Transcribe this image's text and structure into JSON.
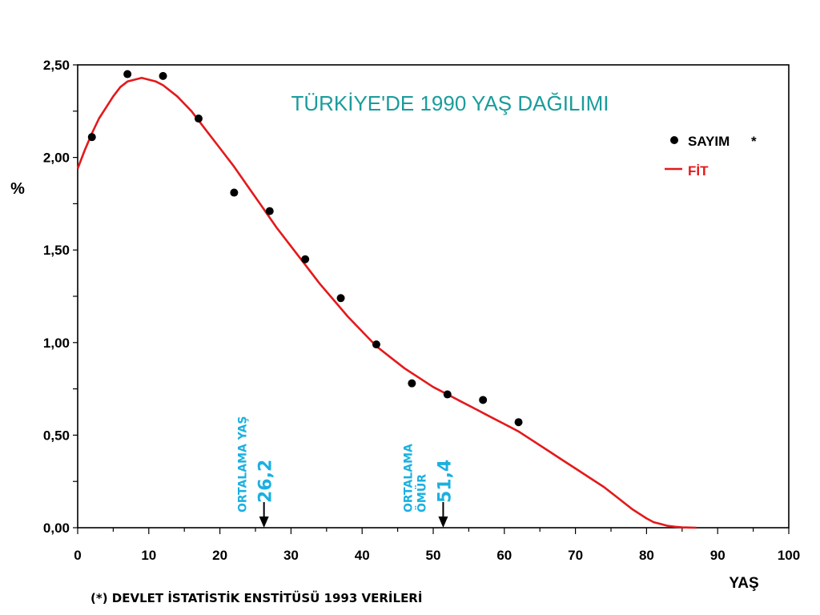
{
  "chart_data": {
    "type": "scatter",
    "title": "TÜRKİYE'DE 1990 YAŞ DAĞILIMI",
    "xlabel": "YAŞ",
    "ylabel": "%",
    "xlim": [
      0,
      100
    ],
    "ylim": [
      0,
      2.5
    ],
    "x_ticks": [
      0,
      10,
      20,
      30,
      40,
      50,
      60,
      70,
      80,
      90,
      100
    ],
    "x_tick_labels": [
      "0",
      "10",
      "20",
      "30",
      "40",
      "50",
      "60",
      "70",
      "80",
      "90",
      "100"
    ],
    "y_ticks": [
      0,
      0.5,
      1.0,
      1.5,
      2.0,
      2.5
    ],
    "y_tick_labels": [
      "0,00",
      "0,50",
      "1,00",
      "1,50",
      "2,00",
      "2,50"
    ],
    "grid": false,
    "legend_position": "top-right",
    "series": [
      {
        "name": "SAYIM",
        "legend_suffix": "*",
        "kind": "points",
        "color": "#000000",
        "x": [
          2,
          7,
          12,
          17,
          22,
          27,
          32,
          37,
          42,
          47,
          52,
          57,
          62
        ],
        "y": [
          2.11,
          2.45,
          2.44,
          2.21,
          1.81,
          1.71,
          1.45,
          1.24,
          0.99,
          0.78,
          0.72,
          0.69,
          0.57
        ]
      },
      {
        "name": "FİT",
        "kind": "line",
        "color": "#e3191b",
        "x": [
          0,
          1,
          2,
          3,
          4,
          5,
          6,
          7,
          8,
          9,
          10,
          11,
          12,
          14,
          16,
          18,
          20,
          22,
          24,
          26,
          28,
          30,
          32,
          34,
          36,
          38,
          40,
          42,
          44,
          46,
          48,
          50,
          52,
          54,
          56,
          58,
          60,
          62,
          64,
          66,
          68,
          70,
          72,
          74,
          76,
          78,
          80,
          81,
          82,
          83,
          84,
          85,
          86,
          87
        ],
        "y": [
          1.94,
          2.04,
          2.13,
          2.21,
          2.27,
          2.33,
          2.38,
          2.41,
          2.42,
          2.43,
          2.42,
          2.41,
          2.39,
          2.33,
          2.25,
          2.15,
          2.05,
          1.95,
          1.84,
          1.73,
          1.62,
          1.52,
          1.42,
          1.32,
          1.23,
          1.14,
          1.06,
          0.98,
          0.92,
          0.86,
          0.81,
          0.76,
          0.72,
          0.68,
          0.64,
          0.6,
          0.56,
          0.52,
          0.47,
          0.42,
          0.37,
          0.32,
          0.27,
          0.22,
          0.16,
          0.1,
          0.05,
          0.03,
          0.02,
          0.01,
          0.005,
          0.002,
          0.001,
          0
        ]
      }
    ],
    "markers": [
      {
        "x": 26.2,
        "label": "ORTALAMA  YAŞ",
        "value": "26,2"
      },
      {
        "x": 51.4,
        "label_lines": [
          "ORTALAMA",
          "ÖMÜR"
        ],
        "value": "51,4"
      }
    ]
  },
  "footnote": "(*) DEVLET İSTATİSTİK ENSTİTÜSÜ 1993 VERİLERİ",
  "colors": {
    "title": "#1a9c9c",
    "annotation": "#1ab0e0",
    "fit": "#e3191b",
    "point": "#000000"
  }
}
